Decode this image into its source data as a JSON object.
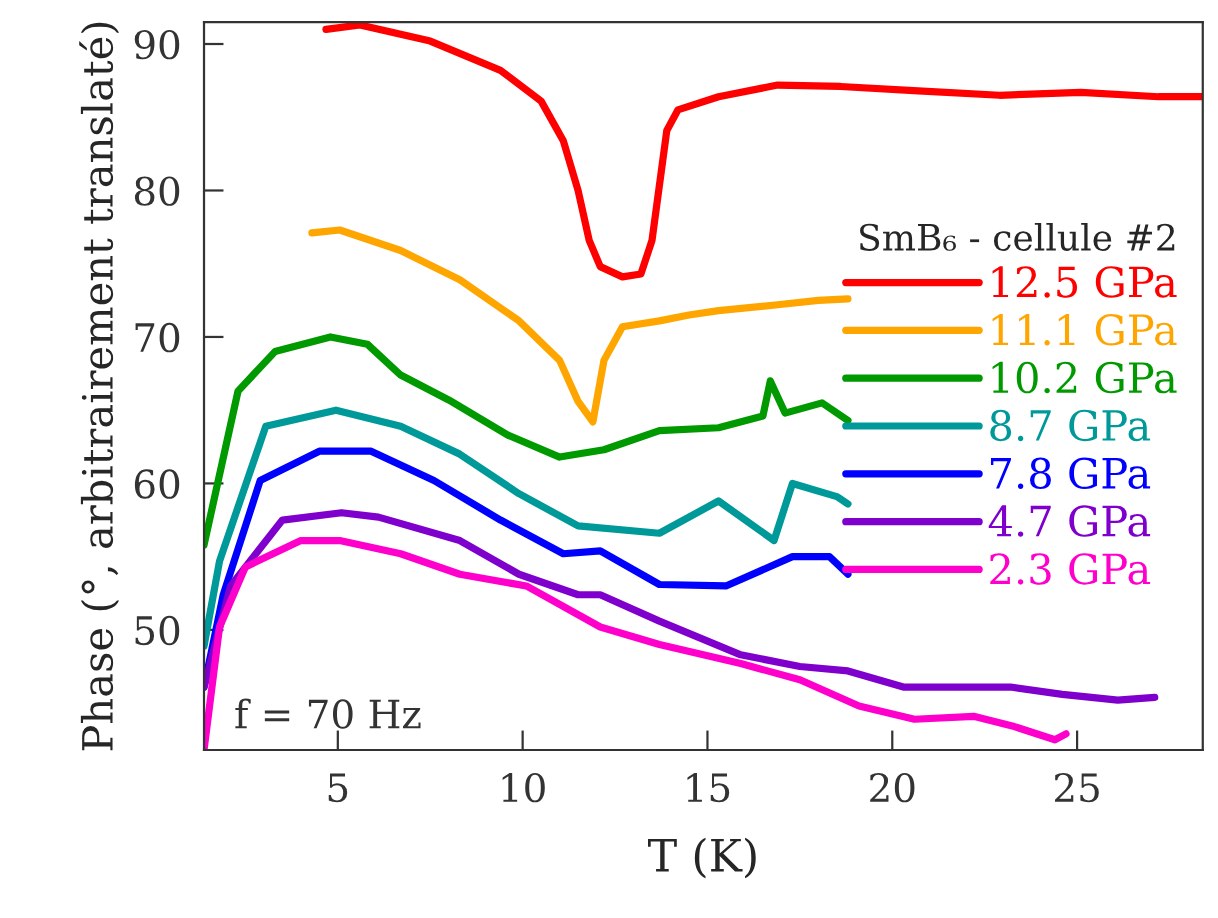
{
  "chart_data": {
    "type": "line",
    "xlabel": "T (K)",
    "ylabel": "Phase (°, arbitrairement translaté)",
    "legend_title": "SmB₆ - cellule #2",
    "legend": "right",
    "grid": false,
    "marker": "none",
    "line_style": "solid",
    "xlim": [
      1.38,
      28.4
    ],
    "xticks": [
      5,
      10,
      15,
      20,
      25
    ],
    "ylim": [
      41.8,
      91.5
    ],
    "yticks": [
      50,
      60,
      70,
      80,
      90
    ],
    "annotations": [
      "f = 70 Hz"
    ],
    "series": [
      {
        "name": "12.5 GPa",
        "color": "#ff0000",
        "x": [
          4.68,
          5.6,
          7.5,
          9.4,
          10.5,
          11.1,
          11.5,
          11.8,
          12.1,
          12.7,
          13.2,
          13.5,
          13.9,
          14.2,
          15.3,
          16.9,
          18.6,
          20.7,
          22.9,
          25.1,
          27.2,
          28.4
        ],
        "values": [
          91.0,
          91.3,
          90.2,
          88.2,
          86.1,
          83.4,
          80.0,
          76.6,
          74.8,
          74.1,
          74.3,
          76.6,
          84.1,
          85.5,
          86.4,
          87.2,
          87.1,
          86.8,
          86.5,
          86.7,
          86.4,
          86.4
        ]
      },
      {
        "name": "11.1 GPa",
        "color": "#ffa500",
        "x": [
          4.3,
          5.05,
          6.7,
          8.3,
          9.9,
          11.0,
          11.5,
          11.9,
          12.2,
          12.7,
          13.7,
          14.5,
          15.3,
          16.9,
          18.0,
          18.8
        ],
        "values": [
          77.1,
          77.3,
          75.9,
          73.9,
          71.1,
          68.4,
          65.6,
          64.2,
          68.4,
          70.7,
          71.1,
          71.5,
          71.8,
          72.2,
          72.5,
          72.6
        ]
      },
      {
        "name": "10.2 GPa",
        "color": "#009900",
        "x": [
          1.38,
          2.3,
          3.3,
          4.8,
          5.8,
          6.7,
          8.0,
          9.6,
          11.0,
          12.2,
          13.7,
          15.3,
          16.5,
          16.7,
          17.1,
          18.1,
          18.8
        ],
        "values": [
          55.8,
          66.3,
          69.0,
          70.0,
          69.5,
          67.4,
          65.7,
          63.3,
          61.8,
          62.3,
          63.6,
          63.8,
          64.6,
          67.0,
          64.8,
          65.5,
          64.3
        ]
      },
      {
        "name": "8.7 GPa",
        "color": "#009999",
        "x": [
          1.38,
          1.8,
          3.05,
          4.95,
          6.7,
          8.3,
          9.9,
          11.5,
          13.7,
          15.3,
          16.8,
          17.3,
          18.5,
          18.8
        ],
        "values": [
          48.9,
          54.7,
          63.9,
          65.0,
          63.9,
          62.0,
          59.3,
          57.1,
          56.6,
          58.8,
          56.1,
          60.0,
          59.1,
          58.6
        ]
      },
      {
        "name": "7.8 GPa",
        "color": "#0000ff",
        "x": [
          1.38,
          1.9,
          2.9,
          4.5,
          5.9,
          7.6,
          9.4,
          11.1,
          12.1,
          13.7,
          15.5,
          17.3,
          18.3,
          18.8
        ],
        "values": [
          46.1,
          52.4,
          60.2,
          62.2,
          62.2,
          60.2,
          57.5,
          55.2,
          55.4,
          53.1,
          53.0,
          55.0,
          55.0,
          53.8
        ]
      },
      {
        "name": "4.7 GPa",
        "color": "#7f00cc",
        "x": [
          1.38,
          2.1,
          3.5,
          5.1,
          6.1,
          8.3,
          9.9,
          11.5,
          12.1,
          13.7,
          15.9,
          17.5,
          18.8,
          20.3,
          21.9,
          23.2,
          24.6,
          26.1,
          27.1
        ],
        "values": [
          46.1,
          53.0,
          57.5,
          58.0,
          57.7,
          56.1,
          53.8,
          52.4,
          52.4,
          50.6,
          48.3,
          47.5,
          47.2,
          46.1,
          46.1,
          46.1,
          45.6,
          45.2,
          45.4
        ]
      },
      {
        "name": "2.3 GPa",
        "color": "#ff00cc",
        "x": [
          1.38,
          1.8,
          2.5,
          4.0,
          5.05,
          6.7,
          8.3,
          10.1,
          12.1,
          13.7,
          15.9,
          17.5,
          19.1,
          20.6,
          22.2,
          23.3,
          24.4,
          24.7
        ],
        "values": [
          41.8,
          50.2,
          54.3,
          56.1,
          56.1,
          55.2,
          53.8,
          53.0,
          50.2,
          49.0,
          47.7,
          46.6,
          44.8,
          43.9,
          44.1,
          43.4,
          42.5,
          42.9
        ]
      }
    ]
  }
}
